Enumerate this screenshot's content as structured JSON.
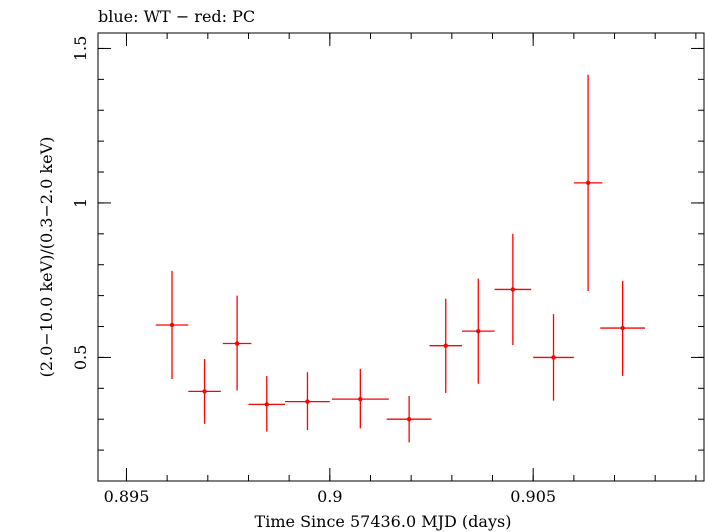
{
  "chart_data": {
    "type": "scatter",
    "title": "blue: WT − red: PC",
    "xlabel": "Time Since 57436.0 MJD (days)",
    "ylabel": "(2.0−10.0 keV)/(0.3−2.0 keV)",
    "xlim": [
      0.8943,
      0.9092
    ],
    "ylim": [
      0.1,
      1.55
    ],
    "x_ticks": [
      {
        "value": 0.895,
        "label": "0.895"
      },
      {
        "value": 0.9,
        "label": "0.9"
      },
      {
        "value": 0.905,
        "label": "0.905"
      }
    ],
    "x_minor_step": 0.001,
    "y_ticks": [
      {
        "value": 0.5,
        "label": "0.5"
      },
      {
        "value": 1.0,
        "label": "1"
      },
      {
        "value": 1.5,
        "label": "1.5"
      }
    ],
    "y_minor_step": 0.1,
    "grid": false,
    "series": [
      {
        "name": "PC",
        "color": "#ff0000",
        "points": [
          {
            "x": 0.89612,
            "xerr": 0.0004,
            "y": 0.605,
            "ylo": 0.43,
            "yhi": 0.78
          },
          {
            "x": 0.89692,
            "xerr": 0.0004,
            "y": 0.39,
            "ylo": 0.285,
            "yhi": 0.495
          },
          {
            "x": 0.89772,
            "xerr": 0.00035,
            "y": 0.545,
            "ylo": 0.393,
            "yhi": 0.7
          },
          {
            "x": 0.89845,
            "xerr": 0.00045,
            "y": 0.348,
            "ylo": 0.26,
            "yhi": 0.44
          },
          {
            "x": 0.89945,
            "xerr": 0.00055,
            "y": 0.357,
            "ylo": 0.265,
            "yhi": 0.452
          },
          {
            "x": 0.90075,
            "xerr": 0.0007,
            "y": 0.365,
            "ylo": 0.27,
            "yhi": 0.463
          },
          {
            "x": 0.90195,
            "xerr": 0.00055,
            "y": 0.3,
            "ylo": 0.225,
            "yhi": 0.375
          },
          {
            "x": 0.90285,
            "xerr": 0.0004,
            "y": 0.538,
            "ylo": 0.385,
            "yhi": 0.69
          },
          {
            "x": 0.90365,
            "xerr": 0.0004,
            "y": 0.585,
            "ylo": 0.415,
            "yhi": 0.755
          },
          {
            "x": 0.9045,
            "xerr": 0.00045,
            "y": 0.72,
            "ylo": 0.54,
            "yhi": 0.9
          },
          {
            "x": 0.9055,
            "xerr": 0.0005,
            "y": 0.5,
            "ylo": 0.36,
            "yhi": 0.64
          },
          {
            "x": 0.90635,
            "xerr": 0.00035,
            "y": 1.065,
            "ylo": 0.715,
            "yhi": 1.415
          },
          {
            "x": 0.9072,
            "xerr": 0.00055,
            "y": 0.595,
            "ylo": 0.44,
            "yhi": 0.748
          }
        ]
      }
    ]
  }
}
